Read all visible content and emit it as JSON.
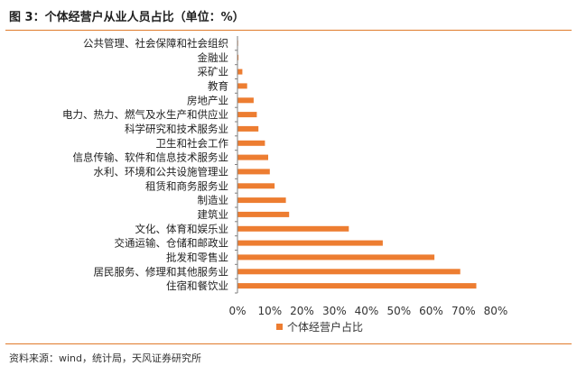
{
  "figure": {
    "title": "图 3：个体经营户从业人员占比（单位：%）",
    "source": "资料来源：wind，统计局，天风证券研究所"
  },
  "colors": {
    "bar": "#ed7d31",
    "rule": "#e07a2a",
    "axis": "#7f7f7f"
  },
  "chart_data": {
    "type": "bar",
    "orientation": "horizontal",
    "categories": [
      "住宿和餐饮业",
      "居民服务、修理和其他服务业",
      "批发和零售业",
      "交通运输、仓储和邮政业",
      "文化、体育和娱乐业",
      "建筑业",
      "制造业",
      "租赁和商务服务业",
      "水利、环境和公共设施管理业",
      "信息传输、软件和信息技术服务业",
      "卫生和社会工作",
      "科学研究和技术服务业",
      "电力、热力、燃气及水生产和供应业",
      "房地产业",
      "教育",
      "采矿业",
      "金融业",
      "公共管理、社会保障和社会组织"
    ],
    "series": [
      {
        "name": "个体经营户占比",
        "values": [
          74,
          69,
          61,
          45,
          34.5,
          16,
          15,
          11.5,
          10,
          9.5,
          8.5,
          6.5,
          6,
          5,
          3,
          1.5,
          0.3,
          0.2
        ]
      }
    ],
    "xlim": [
      0,
      80
    ],
    "xticks": [
      "0%",
      "10%",
      "20%",
      "30%",
      "40%",
      "50%",
      "60%",
      "70%",
      "80%"
    ],
    "grid": false,
    "legend": "bottom"
  }
}
